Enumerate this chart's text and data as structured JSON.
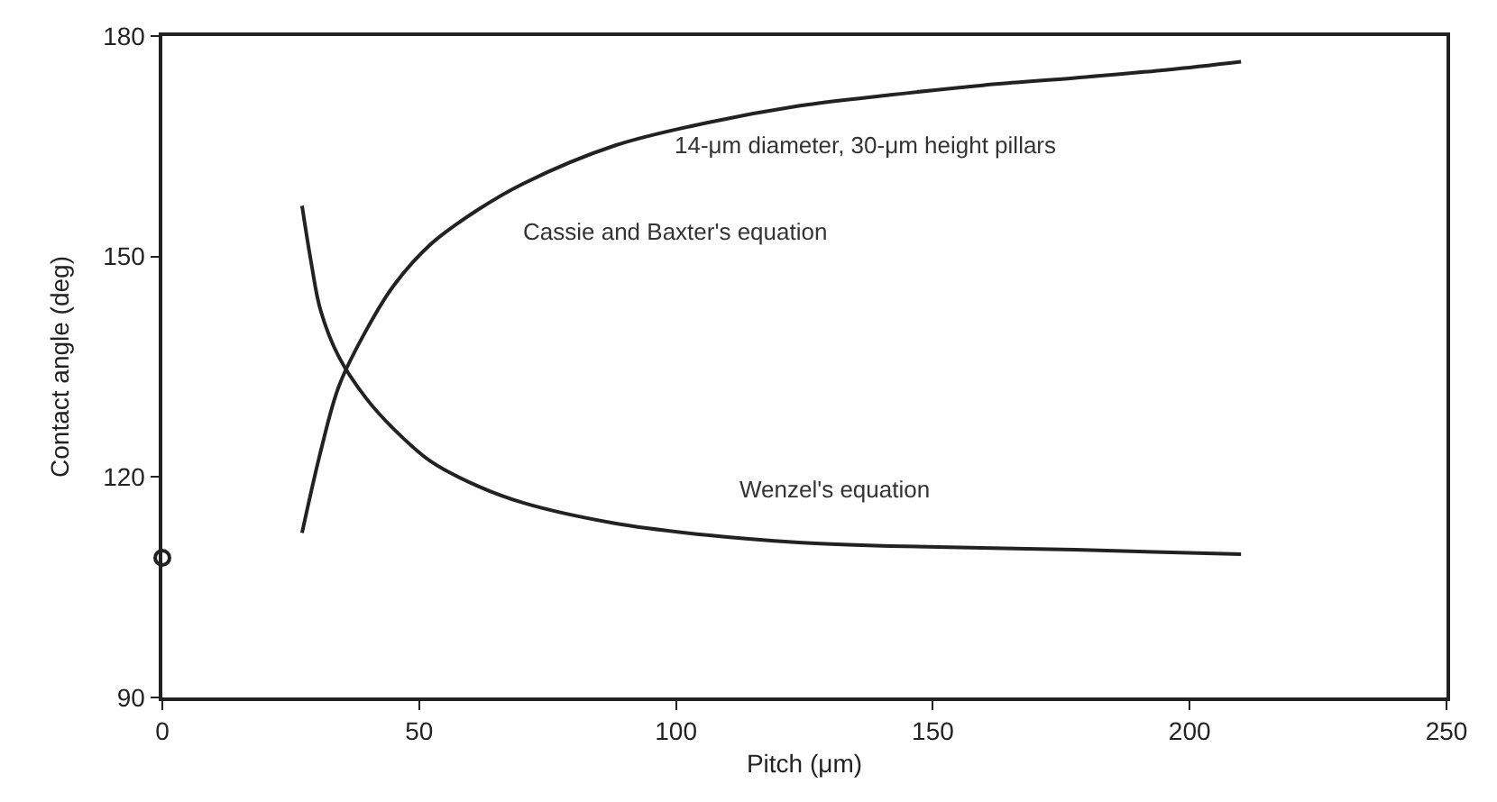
{
  "chart_data": {
    "type": "line",
    "xlabel": "Pitch (μm)",
    "ylabel": "Contact angle (deg)",
    "xlim": [
      0,
      250
    ],
    "xticks": [
      0,
      50,
      100,
      150,
      200,
      250
    ],
    "ylim": [
      90,
      180
    ],
    "yticks": [
      90,
      120,
      150,
      180
    ],
    "series": [
      {
        "color": "#222222",
        "x": [
          27.2,
          30.8,
          34.4,
          39.8,
          45.1,
          52.3,
          61.3,
          70.2,
          88.1,
          106.0,
          123.9,
          141.8,
          159.7,
          177.7,
          195.6,
          210
        ],
        "values": [
          112.4,
          123.4,
          132.4,
          140.1,
          146.1,
          151.7,
          156.3,
          159.9,
          165.1,
          168.2,
          170.5,
          172.0,
          173.3,
          174.3,
          175.4,
          176.5
        ]
      },
      {
        "color": "#222222",
        "x": [
          27.2,
          29.0,
          30.8,
          34.4,
          39.8,
          45.1,
          52.3,
          61.3,
          70.2,
          88.1,
          106.0,
          123.9,
          141.8,
          177.7,
          210
        ],
        "values": [
          156.9,
          149.1,
          142.7,
          136.3,
          130.6,
          126.5,
          122.1,
          118.8,
          116.5,
          113.7,
          112.1,
          111.1,
          110.6,
          110.1,
          109.5
        ]
      },
      {
        "type": "scatter",
        "marker": "circle",
        "color": "#222222",
        "x": [
          0
        ],
        "values": [
          109
        ]
      }
    ],
    "annotations": [
      "Cassie and Baxter's equation",
      "Wenzel's equation",
      "14-μm diameter, 30-μm height pillars"
    ]
  }
}
